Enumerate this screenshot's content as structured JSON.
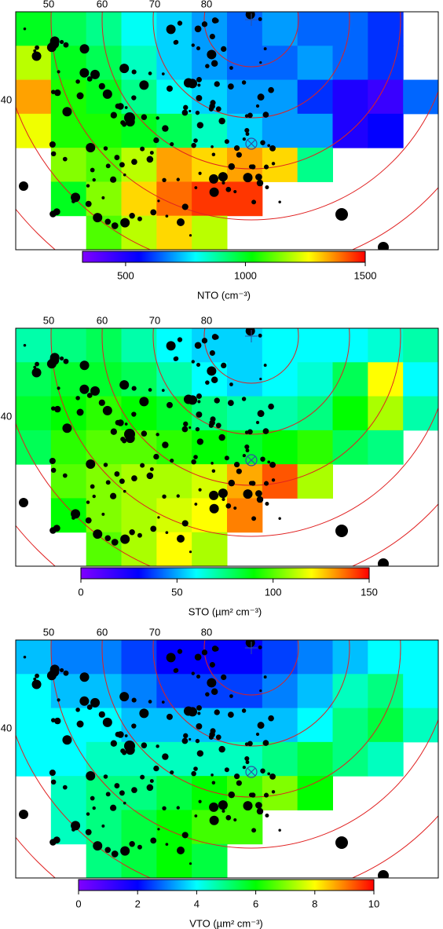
{
  "chart_data": [
    {
      "type": "heatmap",
      "parallels": [
        50,
        60,
        70,
        80
      ],
      "parallel_left": 40,
      "colorbar_label": "NTO (cm⁻³)",
      "clim": [
        320,
        1500
      ],
      "cticks": [
        500,
        1000,
        1500
      ],
      "colors": [
        "#8000ff",
        "#0000ff",
        "#00ffff",
        "#00ff00",
        "#ffff00",
        "#ff0000"
      ],
      "values": [
        [
          1000,
          950,
          900,
          800,
          750,
          700,
          650,
          700,
          650,
          650,
          600,
          null
        ],
        [
          1200,
          1000,
          950,
          850,
          750,
          700,
          650,
          650,
          700,
          650,
          600,
          null
        ],
        [
          1350,
          1050,
          1000,
          900,
          800,
          750,
          700,
          700,
          600,
          500,
          450,
          650
        ],
        [
          1250,
          1050,
          1050,
          1000,
          950,
          850,
          750,
          700,
          700,
          500,
          550,
          null
        ],
        [
          null,
          1150,
          1100,
          1200,
          1350,
          1300,
          1350,
          1300,
          900,
          null,
          null,
          null
        ],
        [
          null,
          1000,
          1150,
          1300,
          1400,
          1450,
          1450,
          null,
          null,
          null,
          null,
          null
        ],
        [
          null,
          null,
          1100,
          1200,
          1300,
          1200,
          null,
          null,
          null,
          null,
          null,
          null
        ]
      ]
    },
    {
      "type": "heatmap",
      "parallels": [
        50,
        60,
        70,
        80
      ],
      "parallel_left": 40,
      "colorbar_label": "STO (µm² cm⁻³)",
      "clim": [
        0,
        150
      ],
      "cticks": [
        0,
        50,
        100,
        150
      ],
      "colors": [
        "#8000ff",
        "#0000ff",
        "#00ffff",
        "#00ff00",
        "#ffff00",
        "#ff0000"
      ],
      "values": [
        [
          70,
          75,
          80,
          70,
          60,
          55,
          55,
          60,
          60,
          60,
          65,
          70
        ],
        [
          80,
          85,
          85,
          80,
          70,
          60,
          55,
          60,
          65,
          80,
          120,
          60
        ],
        [
          85,
          90,
          95,
          90,
          85,
          75,
          70,
          70,
          75,
          90,
          110,
          70
        ],
        [
          80,
          95,
          100,
          100,
          95,
          90,
          85,
          90,
          95,
          80,
          75,
          null
        ],
        [
          null,
          100,
          105,
          110,
          110,
          115,
          130,
          140,
          110,
          null,
          null,
          null
        ],
        [
          null,
          90,
          105,
          110,
          115,
          120,
          135,
          null,
          null,
          null,
          null,
          null
        ],
        [
          null,
          null,
          100,
          110,
          120,
          110,
          null,
          null,
          null,
          null,
          null,
          null
        ]
      ]
    },
    {
      "type": "heatmap",
      "parallels": [
        50,
        60,
        70,
        80
      ],
      "parallel_left": 40,
      "colorbar_label": "VTO (µm² cm⁻³)",
      "clim": [
        0,
        10
      ],
      "cticks": [
        0,
        2,
        4,
        6,
        8,
        10
      ],
      "colors": [
        "#8000ff",
        "#0000ff",
        "#00ffff",
        "#00ff00",
        "#ffff00",
        "#ff0000"
      ],
      "values": [
        [
          3.5,
          3,
          3,
          2.5,
          2,
          2,
          2,
          2.5,
          3,
          3.5,
          4,
          4
        ],
        [
          4,
          3.5,
          3.5,
          3,
          2.5,
          2.5,
          2.5,
          3,
          3.5,
          4.5,
          5,
          4
        ],
        [
          4,
          4,
          4,
          3.5,
          3.5,
          3.5,
          3.5,
          3.5,
          4,
          5,
          5.5,
          4.5
        ],
        [
          4,
          4,
          4.5,
          4.5,
          4.5,
          4.5,
          4.5,
          5,
          5.5,
          5,
          4.5,
          null
        ],
        [
          null,
          4.5,
          5,
          5,
          5.5,
          6,
          6.5,
          7,
          6,
          null,
          null,
          null
        ],
        [
          null,
          4.5,
          5,
          5.5,
          6,
          6.5,
          6.5,
          null,
          null,
          null,
          null,
          null
        ],
        [
          null,
          null,
          5,
          5.5,
          6,
          5.5,
          null,
          null,
          null,
          null,
          null,
          null
        ]
      ]
    }
  ]
}
